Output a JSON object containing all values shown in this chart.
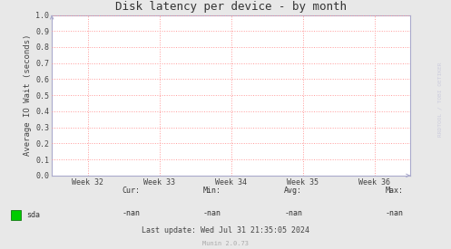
{
  "title": "Disk latency per device - by month",
  "ylabel": "Average IO Wait (seconds)",
  "background_color": "#e8e8e8",
  "plot_background_color": "#ffffff",
  "grid_color": "#ff9999",
  "xlim": [
    0,
    5
  ],
  "ylim": [
    0.0,
    1.0
  ],
  "yticks": [
    0.0,
    0.1,
    0.2,
    0.3,
    0.4,
    0.5,
    0.6,
    0.7,
    0.8,
    0.9,
    1.0
  ],
  "xtick_labels": [
    "Week 32",
    "Week 33",
    "Week 34",
    "Week 35",
    "Week 36"
  ],
  "xtick_positions": [
    0.5,
    1.5,
    2.5,
    3.5,
    4.5
  ],
  "legend_label": "sda",
  "legend_color": "#00cc00",
  "cur_label": "Cur:",
  "cur_value": "-nan",
  "min_label": "Min:",
  "min_value": "-nan",
  "avg_label": "Avg:",
  "avg_value": "-nan",
  "max_label": "Max:",
  "max_value": "-nan",
  "last_update": "Last update: Wed Jul 31 21:35:05 2024",
  "munin_label": "Munin 2.0.73",
  "watermark": "RRDTOOL / TOBI OETIKER",
  "arrow_color": "#aaaacc",
  "title_fontsize": 9,
  "axis_label_fontsize": 6.5,
  "tick_fontsize": 6,
  "footer_fontsize": 6,
  "watermark_fontsize": 4.5
}
